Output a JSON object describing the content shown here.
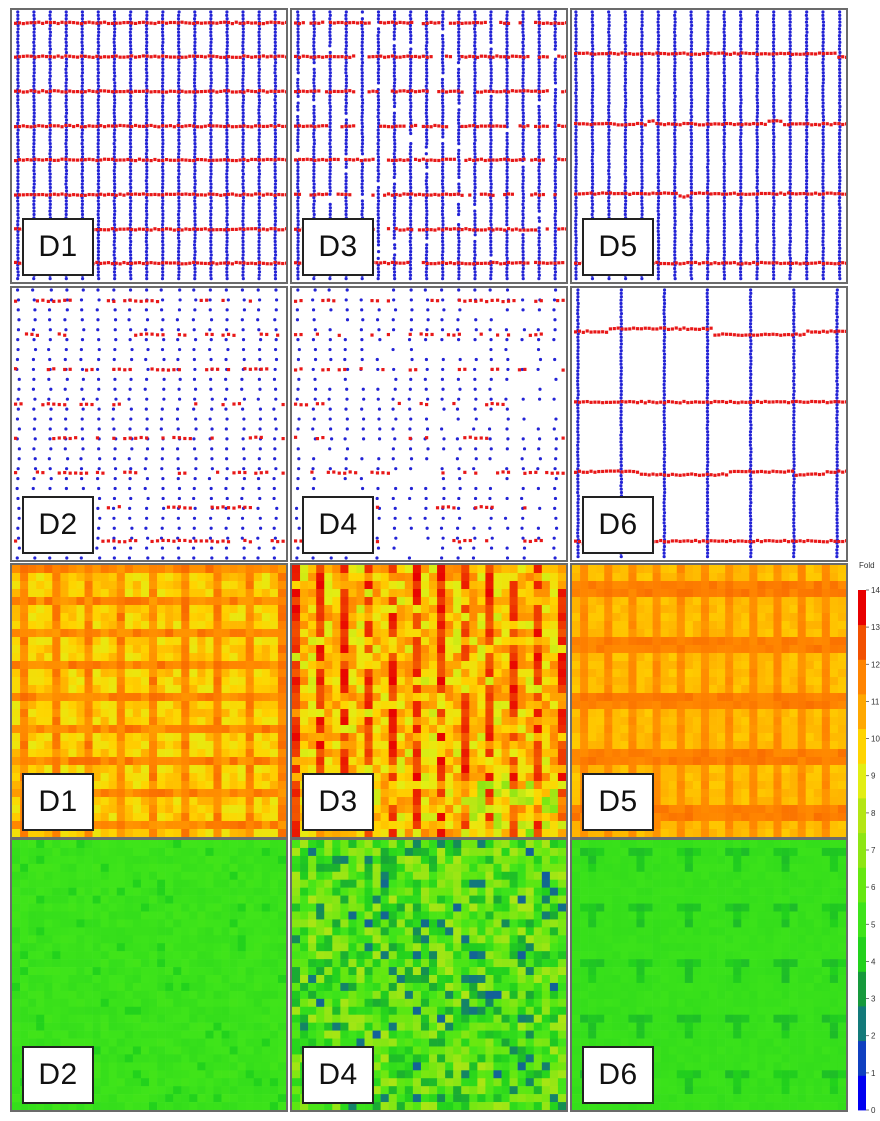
{
  "panels": [
    {
      "id": "p-dot-d1",
      "label": "D1",
      "kind": "dots",
      "pattern": "D1"
    },
    {
      "id": "p-dot-d3",
      "label": "D3",
      "kind": "dots",
      "pattern": "D3"
    },
    {
      "id": "p-dot-d5",
      "label": "D5",
      "kind": "dots",
      "pattern": "D5"
    },
    {
      "id": "p-dot-d2",
      "label": "D2",
      "kind": "dots",
      "pattern": "D2"
    },
    {
      "id": "p-dot-d4",
      "label": "D4",
      "kind": "dots",
      "pattern": "D4"
    },
    {
      "id": "p-dot-d6",
      "label": "D6",
      "kind": "dots",
      "pattern": "D6"
    },
    {
      "id": "p-heat-d1",
      "label": "D1",
      "kind": "heat",
      "pattern": "D1"
    },
    {
      "id": "p-heat-d3",
      "label": "D3",
      "kind": "heat",
      "pattern": "D3"
    },
    {
      "id": "p-heat-d5",
      "label": "D5",
      "kind": "heat",
      "pattern": "D5"
    },
    {
      "id": "p-heat-d2",
      "label": "D2",
      "kind": "heat",
      "pattern": "D2"
    },
    {
      "id": "p-heat-d4",
      "label": "D4",
      "kind": "heat",
      "pattern": "D4"
    },
    {
      "id": "p-heat-d6",
      "label": "D6",
      "kind": "heat",
      "pattern": "D6"
    }
  ],
  "chart_data": [
    {
      "type": "scatter",
      "title": "",
      "series_colors": {
        "vertical": "#2323d6",
        "horizontal": "#e81818"
      },
      "panel_labels": [
        "D1",
        "D3",
        "D5",
        "D2",
        "D4",
        "D6"
      ]
    },
    {
      "type": "heatmap",
      "title": "",
      "panel_labels": [
        "D1",
        "D3",
        "D5",
        "D2",
        "D4",
        "D6"
      ],
      "colorbar": {
        "title": "Fold",
        "range": [
          0,
          14
        ],
        "tick_labels": [
          "0",
          "1",
          "2",
          "3",
          "4",
          "5",
          "6",
          "7",
          "8",
          "9",
          "10",
          "11",
          "12",
          "13",
          "14"
        ],
        "colors": [
          "#0000f0",
          "#1040c0",
          "#137a7a",
          "#169a3c",
          "#22d21c",
          "#3ee41a",
          "#66e810",
          "#8ee614",
          "#b4e614",
          "#e2ee14",
          "#ffd400",
          "#ffa800",
          "#ff8400",
          "#f25000",
          "#e80000"
        ]
      },
      "approx_mean_fold": {
        "D1": 10.3,
        "D3": 11.0,
        "D5": 11.2,
        "D2": 4.8,
        "D4": 4.9,
        "D6": 4.1
      }
    }
  ]
}
